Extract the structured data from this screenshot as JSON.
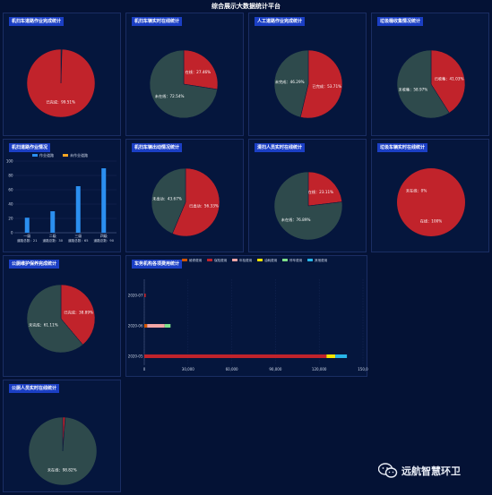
{
  "header": {
    "title": "综合展示大数据统计平台"
  },
  "colors": {
    "done": "#c1232b",
    "undone": "#2e4a4c",
    "bar": "#2b8ff0",
    "bar2": "#f5a623"
  },
  "panels": [
    {
      "title": "机扫车道路作业完成统计",
      "slices": [
        {
          "label": "未完成：0.49%",
          "value": 0.49,
          "color": "#2e4a4c"
        },
        {
          "label": "已完成：99.51%",
          "value": 99.51,
          "color": "#c1232b"
        }
      ]
    },
    {
      "title": "机扫车辆实时在线统计",
      "slices": [
        {
          "label": "在线：27.46%",
          "value": 27.46,
          "color": "#c1232b"
        },
        {
          "label": "未在线：72.54%",
          "value": 72.54,
          "color": "#2e4a4c"
        }
      ]
    },
    {
      "title": "人工道路作业完成统计",
      "slices": [
        {
          "label": "已完成：53.71%",
          "value": 53.71,
          "color": "#c1232b"
        },
        {
          "label": "未完成：46.29%",
          "value": 46.29,
          "color": "#2e4a4c"
        }
      ]
    },
    {
      "title": "垃圾桶收集情况统计",
      "slices": [
        {
          "label": "已收集：41.03%",
          "value": 41.03,
          "color": "#c1232b"
        },
        {
          "label": "未收集：58.97%",
          "value": 58.97,
          "color": "#2e4a4c"
        }
      ]
    },
    {
      "title": "机扫车辆出动情况统计",
      "slices": [
        {
          "label": "已出动：56.33%",
          "value": 56.33,
          "color": "#c1232b"
        },
        {
          "label": "未出动：43.67%",
          "value": 43.67,
          "color": "#2e4a4c"
        }
      ]
    },
    {
      "title": "清扫人员实时在线统计",
      "slices": [
        {
          "label": "在线：23.11%",
          "value": 23.11,
          "color": "#c1232b"
        },
        {
          "label": "未在线：76.89%",
          "value": 76.89,
          "color": "#2e4a4c"
        }
      ]
    },
    {
      "title": "垃圾车辆实时在线统计",
      "slices": [
        {
          "label": "在线：100%",
          "value": 100,
          "color": "#c1232b"
        },
        {
          "label": "未在线：0%",
          "value": 0,
          "color": "#2e4a4c"
        }
      ]
    },
    {
      "title": "公厕维护保养完成统计",
      "slices": [
        {
          "label": "已完成：38.89%",
          "value": 38.89,
          "color": "#c1232b"
        },
        {
          "label": "未完成：61.11%",
          "value": 61.11,
          "color": "#2e4a4c"
        }
      ]
    },
    {
      "title": "公厕人员实时在线统计",
      "slices": [
        {
          "label": "在线：1.18%",
          "value": 1.18,
          "color": "#c1232b"
        },
        {
          "label": "未在线：98.82%",
          "value": 98.82,
          "color": "#2e4a4c"
        }
      ]
    }
  ],
  "bar_panel": {
    "title": "机扫道路作业情况",
    "legend": [
      "作业道路",
      "未作业道路"
    ],
    "yticks": [
      "100",
      "80",
      "60",
      "40",
      "20",
      "0"
    ],
    "categories": [
      {
        "name": "一级",
        "detail": "道路总数：21"
      },
      {
        "name": "二级",
        "detail": "道路总数：30"
      },
      {
        "name": "三级",
        "detail": "道路总数：65"
      },
      {
        "name": "四级",
        "detail": "道路总数：90"
      }
    ]
  },
  "hbar_panel": {
    "title": "车务机构各项费用统计",
    "legend": [
      {
        "label": "维修费用",
        "color": "#d35400"
      },
      {
        "label": "保险费用",
        "color": "#c1232b"
      },
      {
        "label": "年检费用",
        "color": "#f4a6a6"
      },
      {
        "label": "油耗费用",
        "color": "#f5e400"
      },
      {
        "label": "停车费用",
        "color": "#7fe08a"
      },
      {
        "label": "其他费用",
        "color": "#28b5e8"
      }
    ],
    "rows": [
      "2020-07",
      "2020-06",
      "2020-05"
    ],
    "xticks": [
      "0",
      "30,000",
      "60,000",
      "90,000",
      "120,000",
      "150,0"
    ]
  },
  "chart_data": [
    {
      "type": "pie",
      "title": "机扫车道路作业完成统计",
      "categories": [
        "未完成",
        "已完成"
      ],
      "values": [
        0.49,
        99.51
      ]
    },
    {
      "type": "pie",
      "title": "机扫车辆实时在线统计",
      "categories": [
        "在线",
        "未在线"
      ],
      "values": [
        27.46,
        72.54
      ]
    },
    {
      "type": "pie",
      "title": "人工道路作业完成统计",
      "categories": [
        "已完成",
        "未完成"
      ],
      "values": [
        53.71,
        46.29
      ]
    },
    {
      "type": "pie",
      "title": "垃圾桶收集情况统计",
      "categories": [
        "已收集",
        "未收集"
      ],
      "values": [
        41.03,
        58.97
      ]
    },
    {
      "type": "bar",
      "title": "机扫道路作业情况",
      "categories": [
        "一级",
        "二级",
        "三级",
        "四级"
      ],
      "series": [
        {
          "name": "作业道路",
          "values": [
            21,
            30,
            65,
            90
          ]
        },
        {
          "name": "未作业道路",
          "values": [
            0,
            0,
            0,
            0
          ]
        }
      ],
      "ylim": [
        0,
        100
      ]
    },
    {
      "type": "pie",
      "title": "机扫车辆出动情况统计",
      "categories": [
        "已出动",
        "未出动"
      ],
      "values": [
        56.33,
        43.67
      ]
    },
    {
      "type": "pie",
      "title": "清扫人员实时在线统计",
      "categories": [
        "在线",
        "未在线"
      ],
      "values": [
        23.11,
        76.89
      ]
    },
    {
      "type": "pie",
      "title": "垃圾车辆实时在线统计",
      "categories": [
        "在线",
        "未在线"
      ],
      "values": [
        100,
        0
      ]
    },
    {
      "type": "pie",
      "title": "公厕维护保养完成统计",
      "categories": [
        "已完成",
        "未完成"
      ],
      "values": [
        38.89,
        61.11
      ]
    },
    {
      "type": "bar",
      "title": "车务机构各项费用统计",
      "categories": [
        "2020-07",
        "2020-06",
        "2020-05"
      ],
      "series": [
        {
          "name": "维修费用",
          "values": [
            0,
            2000,
            0
          ]
        },
        {
          "name": "保险费用",
          "values": [
            1000,
            0,
            125000
          ]
        },
        {
          "name": "年检费用",
          "values": [
            0,
            12000,
            0
          ]
        },
        {
          "name": "油耗费用",
          "values": [
            0,
            0,
            6000
          ]
        },
        {
          "name": "停车费用",
          "values": [
            0,
            4000,
            0
          ]
        },
        {
          "name": "其他费用",
          "values": [
            0,
            0,
            8000
          ]
        }
      ],
      "xlim": [
        0,
        150000
      ]
    },
    {
      "type": "pie",
      "title": "公厕人员实时在线统计",
      "categories": [
        "在线",
        "未在线"
      ],
      "values": [
        1.18,
        98.82
      ]
    }
  ],
  "watermark": {
    "text": "远航智慧环卫",
    "icon": "wechat-icon"
  }
}
